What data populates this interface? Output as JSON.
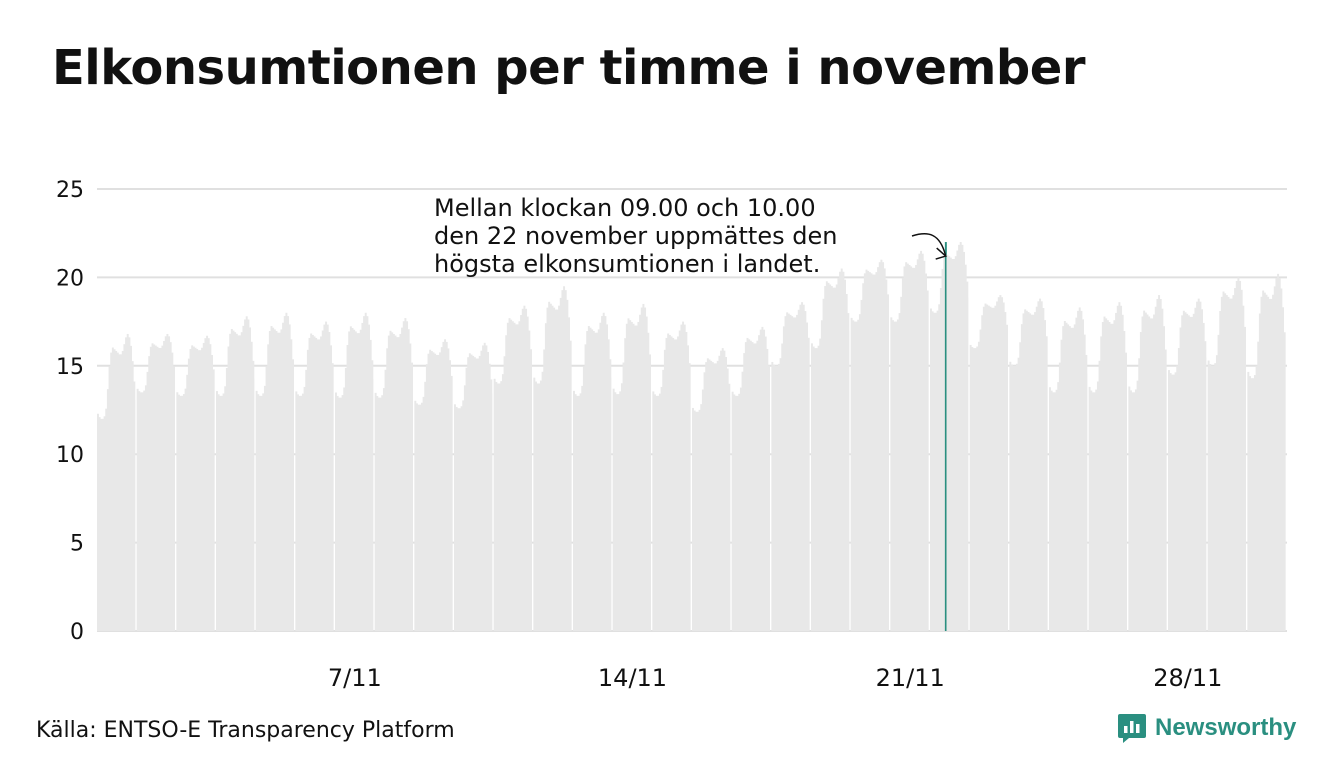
{
  "title": "Elkonsumtionen per timme i november",
  "source": "Källa: ENTSO-E Transparency Platform",
  "brand": {
    "name": "Newsworthy",
    "color": "#2a8f80",
    "icon": "newsworthy-logo-icon"
  },
  "colors": {
    "bars": "#e8e8e8",
    "highlight": "#2a8f80",
    "grid": "#e0e0e0",
    "text": "#111111"
  },
  "chart_data": {
    "type": "bar",
    "title": "Elkonsumtionen per timme i november",
    "xlabel": "",
    "ylabel": "",
    "ylim": [
      0,
      25
    ],
    "yticks": [
      "0",
      "5",
      "10",
      "15",
      "20",
      "25"
    ],
    "xticks": [
      "7/11",
      "14/11",
      "21/11",
      "28/11"
    ],
    "grid": true,
    "days": 30,
    "hours_per_day": 24,
    "daily_peaks": [
      16.8,
      16.8,
      16.7,
      17.8,
      18.0,
      17.5,
      18.0,
      17.7,
      16.5,
      16.3,
      18.4,
      19.5,
      18.0,
      18.5,
      17.5,
      16.0,
      17.2,
      18.6,
      20.5,
      21.0,
      21.5,
      22.0,
      19.0,
      18.8,
      18.3,
      18.6,
      19.0,
      18.8,
      20.0,
      20.2
    ],
    "daily_lows": [
      12.0,
      13.5,
      13.3,
      13.3,
      13.3,
      13.3,
      13.2,
      13.2,
      12.8,
      12.6,
      14.0,
      14.0,
      13.3,
      13.4,
      13.3,
      12.4,
      13.3,
      15.0,
      16.0,
      17.5,
      17.5,
      18.0,
      16.0,
      15.0,
      13.5,
      13.5,
      13.5,
      14.5,
      15.0,
      14.3
    ],
    "highlight": {
      "day": 22,
      "hour": "09.00–10.00",
      "value": 22.0
    },
    "annotation": [
      "Mellan klockan 09.00 och 10.00",
      "den 22 november uppmättes den",
      "högsta elkonsumtionen i landet."
    ]
  }
}
